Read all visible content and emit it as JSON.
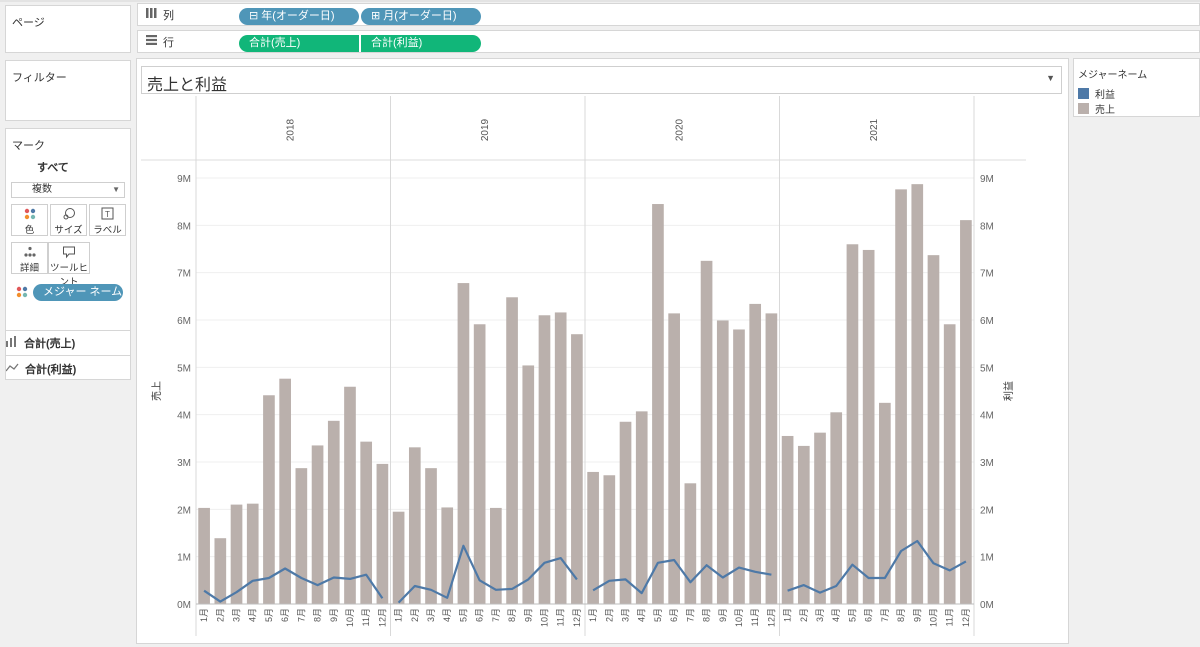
{
  "panels": {
    "pages_title": "ページ",
    "filters_title": "フィルター",
    "marks_title": "マーク"
  },
  "shelves": {
    "columns_label": "列",
    "rows_label": "行",
    "column_pills": [
      "⊟ 年(オーダー日)",
      "⊞ 月(オーダー日)"
    ],
    "row_pills": [
      "合計(売上)",
      "合計(利益)"
    ]
  },
  "marks": {
    "all_label": "すべて",
    "mark_type": "複数",
    "buttons": [
      "色",
      "サイズ",
      "ラベル",
      "詳細",
      "ツールヒント"
    ],
    "color_pill": "メジャー ネーム",
    "measures": [
      "合計(売上)",
      "合計(利益)"
    ]
  },
  "legend": {
    "title": "メジャーネーム",
    "items": [
      {
        "label": "利益",
        "color": "#4e79a7"
      },
      {
        "label": "売上",
        "color": "#bab0ac"
      }
    ]
  },
  "colors": {
    "bar": "#bab0ac",
    "line": "#4e79a7",
    "pill_blue": "#4f96b8",
    "pill_green": "#11b679"
  },
  "chart_data": {
    "type": "bar",
    "title": "売上と利益",
    "xlabel": "",
    "ylabel": "売上",
    "y2label": "利益",
    "ylim": [
      0,
      9000000
    ],
    "y2lim": [
      0,
      9000000
    ],
    "yticks": [
      "0M",
      "1M",
      "2M",
      "3M",
      "4M",
      "5M",
      "6M",
      "7M",
      "8M",
      "9M"
    ],
    "y2ticks": [
      "0M",
      "1M",
      "2M",
      "3M",
      "4M",
      "5M",
      "6M",
      "7M",
      "8M",
      "9M"
    ],
    "years": [
      "2018",
      "2019",
      "2020",
      "2021"
    ],
    "months": [
      "1月",
      "2月",
      "3月",
      "4月",
      "5月",
      "6月",
      "7月",
      "8月",
      "9月",
      "10月",
      "11月",
      "12月"
    ],
    "grid": true,
    "legend": "right",
    "series": [
      {
        "name": "売上",
        "type": "bar",
        "values": [
          [
            2.03,
            1.39,
            2.1,
            2.12,
            4.41,
            4.76,
            2.87,
            3.35,
            3.87,
            4.59,
            3.43,
            2.96
          ],
          [
            1.95,
            3.31,
            2.87,
            2.04,
            6.78,
            5.91,
            2.03,
            6.48,
            5.04,
            6.1,
            6.16,
            5.7
          ],
          [
            2.79,
            2.72,
            3.85,
            4.07,
            8.45,
            6.14,
            2.55,
            7.25,
            5.99,
            5.8,
            6.34,
            6.14
          ],
          [
            3.55,
            3.34,
            3.62,
            4.05,
            7.6,
            7.48,
            4.25,
            8.76,
            8.87,
            7.37,
            5.91,
            8.11
          ]
        ]
      },
      {
        "name": "利益",
        "type": "line",
        "values": [
          [
            0.28,
            0.05,
            0.25,
            0.49,
            0.55,
            0.75,
            0.55,
            0.4,
            0.56,
            0.53,
            0.62,
            0.12
          ],
          [
            0.03,
            0.38,
            0.3,
            0.13,
            1.23,
            0.5,
            0.3,
            0.32,
            0.52,
            0.87,
            0.97,
            0.52
          ],
          [
            0.29,
            0.49,
            0.52,
            0.23,
            0.87,
            0.93,
            0.46,
            0.82,
            0.56,
            0.77,
            0.68,
            0.62
          ],
          [
            0.28,
            0.4,
            0.24,
            0.38,
            0.83,
            0.55,
            0.55,
            1.12,
            1.33,
            0.86,
            0.71,
            0.9
          ]
        ]
      }
    ]
  }
}
